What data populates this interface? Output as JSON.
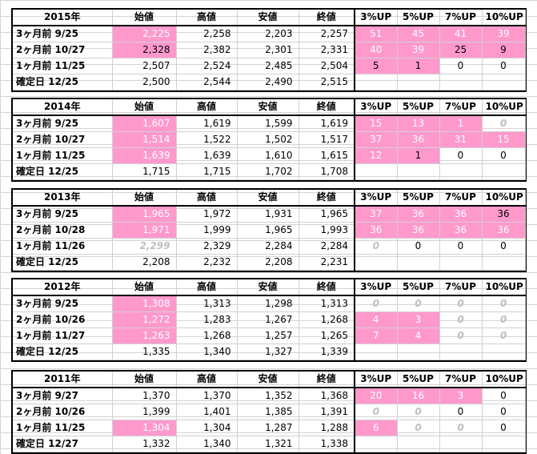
{
  "headers": {
    "open": "始値",
    "high": "高値",
    "low": "安値",
    "close": "終値",
    "p3": "3%UP",
    "p5": "5%UP",
    "p7": "7%UP",
    "p10": "10%UP"
  },
  "blocks": [
    {
      "year": "2015年",
      "rows": [
        {
          "label": "3ヶ月前 9/25",
          "open": "2,225",
          "high": "2,258",
          "low": "2,203",
          "close": "2,257",
          "p3": "51",
          "p5": "45",
          "p7": "41",
          "p10": "39"
        },
        {
          "label": "2ヶ月前 10/27",
          "open": "2,328",
          "high": "2,382",
          "low": "2,301",
          "close": "2,331",
          "p3": "40",
          "p5": "39",
          "p7": "25",
          "p10": "9"
        },
        {
          "label": "1ヶ月前 11/25",
          "open": "2,507",
          "high": "2,524",
          "low": "2,485",
          "close": "2,504",
          "p3": "5",
          "p5": "1",
          "p7": "0",
          "p10": "0"
        },
        {
          "label": "確定日 12/25",
          "open": "2,500",
          "high": "2,544",
          "low": "2,490",
          "close": "2,515",
          "p3": "",
          "p5": "",
          "p7": "",
          "p10": ""
        }
      ]
    },
    {
      "year": "2014年",
      "rows": [
        {
          "label": "3ヶ月前 9/25",
          "open": "1,607",
          "high": "1,619",
          "low": "1,599",
          "close": "1,619",
          "p3": "15",
          "p5": "13",
          "p7": "1",
          "p10": "0"
        },
        {
          "label": "2ヶ月前 10/27",
          "open": "1,514",
          "high": "1,522",
          "low": "1,502",
          "close": "1,517",
          "p3": "37",
          "p5": "36",
          "p7": "31",
          "p10": "15"
        },
        {
          "label": "1ヶ月前 11/25",
          "open": "1,639",
          "high": "1,639",
          "low": "1,610",
          "close": "1,615",
          "p3": "12",
          "p5": "1",
          "p7": "0",
          "p10": "0"
        },
        {
          "label": "確定日 12/25",
          "open": "1,715",
          "high": "1,715",
          "low": "1,702",
          "close": "1,708",
          "p3": "",
          "p5": "",
          "p7": "",
          "p10": ""
        }
      ]
    },
    {
      "year": "2013年",
      "rows": [
        {
          "label": "3ヶ月前 9/25",
          "open": "1,965",
          "high": "1,972",
          "low": "1,931",
          "close": "1,965",
          "p3": "37",
          "p5": "36",
          "p7": "36",
          "p10": "36"
        },
        {
          "label": "2ヶ月前 10/28",
          "open": "1,971",
          "high": "1,999",
          "low": "1,965",
          "close": "1,993",
          "p3": "36",
          "p5": "36",
          "p7": "36",
          "p10": "36"
        },
        {
          "label": "1ヶ月前 11/26",
          "open": "2,299",
          "high": "2,329",
          "low": "2,284",
          "close": "2,284",
          "p3": "0",
          "p5": "0",
          "p7": "0",
          "p10": "0"
        },
        {
          "label": "確定日 12/25",
          "open": "2,208",
          "high": "2,232",
          "low": "2,208",
          "close": "2,231",
          "p3": "",
          "p5": "",
          "p7": "",
          "p10": ""
        }
      ]
    },
    {
      "year": "2012年",
      "rows": [
        {
          "label": "3ヶ月前 9/25",
          "open": "1,308",
          "high": "1,313",
          "low": "1,298",
          "close": "1,313",
          "p3": "0",
          "p5": "0",
          "p7": "0",
          "p10": "0"
        },
        {
          "label": "2ヶ月前 10/26",
          "open": "1,272",
          "high": "1,283",
          "low": "1,267",
          "close": "1,268",
          "p3": "4",
          "p5": "3",
          "p7": "0",
          "p10": "0"
        },
        {
          "label": "1ヶ月前 11/27",
          "open": "1,263",
          "high": "1,268",
          "low": "1,257",
          "close": "1,265",
          "p3": "7",
          "p5": "4",
          "p7": "0",
          "p10": "0"
        },
        {
          "label": "確定日 12/25",
          "open": "1,335",
          "high": "1,340",
          "low": "1,327",
          "close": "1,339",
          "p3": "",
          "p5": "",
          "p7": "",
          "p10": ""
        }
      ]
    },
    {
      "year": "2011年",
      "rows": [
        {
          "label": "3ヶ月前 9/27",
          "open": "1,370",
          "high": "1,370",
          "low": "1,352",
          "close": "1,368",
          "p3": "20",
          "p5": "16",
          "p7": "3",
          "p10": "0"
        },
        {
          "label": "2ヶ月前 10/26",
          "open": "1,399",
          "high": "1,401",
          "low": "1,385",
          "close": "1,391",
          "p3": "0",
          "p5": "0",
          "p7": "0",
          "p10": "0"
        },
        {
          "label": "1ヶ月前 11/25",
          "open": "1,304",
          "high": "1,304",
          "low": "1,287",
          "close": "1,288",
          "p3": "6",
          "p5": "0",
          "p7": "0",
          "p10": "0"
        },
        {
          "label": "確定日 12/27",
          "open": "1,332",
          "high": "1,340",
          "low": "1,321",
          "close": "1,338",
          "p3": "",
          "p5": "",
          "p7": "",
          "p10": ""
        }
      ]
    }
  ],
  "colors": {
    "highlight": "#ff99cc",
    "zero_muted": "#bfbfbf",
    "border": "#000000",
    "grid": "#d4d4d4"
  }
}
